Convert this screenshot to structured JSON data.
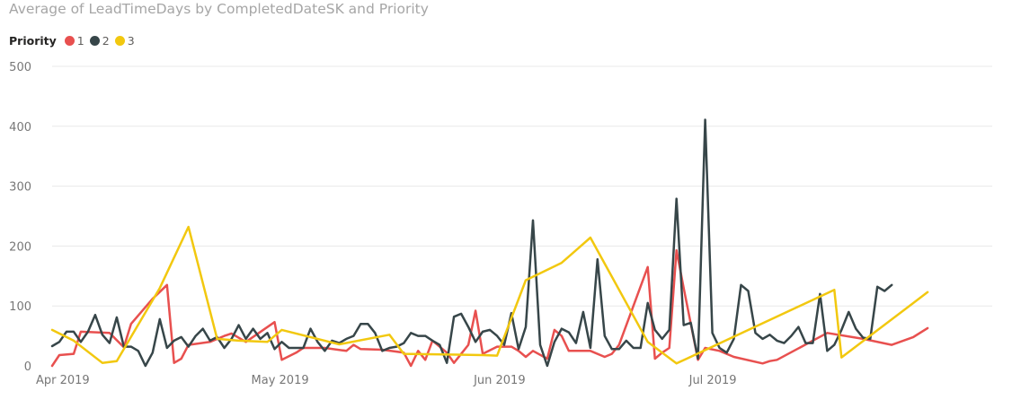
{
  "chart_data": {
    "type": "line",
    "title": "Average of LeadTimeDays by CompletedDateSK and Priority",
    "legend_title": "Priority",
    "legend_position": "top-left",
    "xlabel": "",
    "ylabel": "",
    "ylim": [
      0,
      500
    ],
    "y_ticks": [
      "0",
      "100",
      "200",
      "300",
      "400",
      "500"
    ],
    "x_range": [
      "2019-04-01",
      "2019-08-10"
    ],
    "x_ticks": [
      {
        "date": "2019-04-01",
        "label": "Apr 2019"
      },
      {
        "date": "2019-05-01",
        "label": "May 2019"
      },
      {
        "date": "2019-06-01",
        "label": "Jun 2019"
      },
      {
        "date": "2019-07-01",
        "label": "Jul 2019"
      }
    ],
    "grid": true,
    "series": [
      {
        "name": "1",
        "color": "#e8504f",
        "points": [
          [
            "2019-04-01",
            0
          ],
          [
            "2019-04-02",
            18
          ],
          [
            "2019-04-04",
            20
          ],
          [
            "2019-04-05",
            57
          ],
          [
            "2019-04-09",
            55
          ],
          [
            "2019-04-11",
            31
          ],
          [
            "2019-04-12",
            70
          ],
          [
            "2019-04-15",
            112
          ],
          [
            "2019-04-17",
            135
          ],
          [
            "2019-04-18",
            5
          ],
          [
            "2019-04-19",
            12
          ],
          [
            "2019-04-20",
            35
          ],
          [
            "2019-04-23",
            40
          ],
          [
            "2019-04-25",
            50
          ],
          [
            "2019-04-26",
            54
          ],
          [
            "2019-04-28",
            40
          ],
          [
            "2019-05-02",
            73
          ],
          [
            "2019-05-03",
            10
          ],
          [
            "2019-05-05",
            22
          ],
          [
            "2019-05-06",
            30
          ],
          [
            "2019-05-09",
            30
          ],
          [
            "2019-05-12",
            25
          ],
          [
            "2019-05-13",
            35
          ],
          [
            "2019-05-14",
            28
          ],
          [
            "2019-05-17",
            27
          ],
          [
            "2019-05-20",
            22
          ],
          [
            "2019-05-21",
            0
          ],
          [
            "2019-05-22",
            25
          ],
          [
            "2019-05-23",
            10
          ],
          [
            "2019-05-24",
            42
          ],
          [
            "2019-05-26",
            22
          ],
          [
            "2019-05-27",
            5
          ],
          [
            "2019-05-29",
            35
          ],
          [
            "2019-05-30",
            92
          ],
          [
            "2019-05-31",
            20
          ],
          [
            "2019-06-02",
            32
          ],
          [
            "2019-06-04",
            32
          ],
          [
            "2019-06-05",
            25
          ],
          [
            "2019-06-06",
            15
          ],
          [
            "2019-06-07",
            25
          ],
          [
            "2019-06-09",
            12
          ],
          [
            "2019-06-10",
            60
          ],
          [
            "2019-06-11",
            50
          ],
          [
            "2019-06-12",
            25
          ],
          [
            "2019-06-13",
            25
          ],
          [
            "2019-06-15",
            25
          ],
          [
            "2019-06-17",
            15
          ],
          [
            "2019-06-18",
            20
          ],
          [
            "2019-06-19",
            35
          ],
          [
            "2019-06-23",
            165
          ],
          [
            "2019-06-24",
            12
          ],
          [
            "2019-06-25",
            22
          ],
          [
            "2019-06-26",
            30
          ],
          [
            "2019-06-27",
            193
          ],
          [
            "2019-06-28",
            130
          ],
          [
            "2019-06-30",
            10
          ],
          [
            "2019-07-01",
            30
          ],
          [
            "2019-07-03",
            25
          ],
          [
            "2019-07-05",
            15
          ],
          [
            "2019-07-09",
            4
          ],
          [
            "2019-07-10",
            8
          ],
          [
            "2019-07-11",
            10
          ],
          [
            "2019-07-18",
            55
          ],
          [
            "2019-07-23",
            45
          ],
          [
            "2019-07-27",
            35
          ],
          [
            "2019-07-30",
            48
          ],
          [
            "2019-08-01",
            63
          ]
        ]
      },
      {
        "name": "2",
        "color": "#374649",
        "points": [
          [
            "2019-04-01",
            33
          ],
          [
            "2019-04-02",
            40
          ],
          [
            "2019-04-03",
            57
          ],
          [
            "2019-04-04",
            57
          ],
          [
            "2019-04-05",
            40
          ],
          [
            "2019-04-06",
            57
          ],
          [
            "2019-04-07",
            85
          ],
          [
            "2019-04-08",
            52
          ],
          [
            "2019-04-09",
            38
          ],
          [
            "2019-04-10",
            81
          ],
          [
            "2019-04-11",
            32
          ],
          [
            "2019-04-12",
            32
          ],
          [
            "2019-04-13",
            25
          ],
          [
            "2019-04-14",
            0
          ],
          [
            "2019-04-15",
            22
          ],
          [
            "2019-04-16",
            78
          ],
          [
            "2019-04-17",
            30
          ],
          [
            "2019-04-18",
            42
          ],
          [
            "2019-04-19",
            48
          ],
          [
            "2019-04-20",
            32
          ],
          [
            "2019-04-21",
            50
          ],
          [
            "2019-04-22",
            62
          ],
          [
            "2019-04-23",
            42
          ],
          [
            "2019-04-24",
            48
          ],
          [
            "2019-04-25",
            30
          ],
          [
            "2019-04-26",
            45
          ],
          [
            "2019-04-27",
            68
          ],
          [
            "2019-04-28",
            45
          ],
          [
            "2019-04-29",
            62
          ],
          [
            "2019-04-30",
            45
          ],
          [
            "2019-05-01",
            55
          ],
          [
            "2019-05-02",
            28
          ],
          [
            "2019-05-03",
            40
          ],
          [
            "2019-05-04",
            30
          ],
          [
            "2019-05-05",
            30
          ],
          [
            "2019-05-06",
            30
          ],
          [
            "2019-05-07",
            62
          ],
          [
            "2019-05-08",
            40
          ],
          [
            "2019-05-09",
            25
          ],
          [
            "2019-05-10",
            42
          ],
          [
            "2019-05-11",
            38
          ],
          [
            "2019-05-12",
            45
          ],
          [
            "2019-05-13",
            50
          ],
          [
            "2019-05-14",
            70
          ],
          [
            "2019-05-15",
            70
          ],
          [
            "2019-05-16",
            55
          ],
          [
            "2019-05-17",
            25
          ],
          [
            "2019-05-18",
            30
          ],
          [
            "2019-05-19",
            32
          ],
          [
            "2019-05-20",
            38
          ],
          [
            "2019-05-21",
            55
          ],
          [
            "2019-05-22",
            50
          ],
          [
            "2019-05-23",
            50
          ],
          [
            "2019-05-24",
            42
          ],
          [
            "2019-05-25",
            35
          ],
          [
            "2019-05-26",
            5
          ],
          [
            "2019-05-27",
            82
          ],
          [
            "2019-05-28",
            87
          ],
          [
            "2019-05-29",
            65
          ],
          [
            "2019-05-30",
            40
          ],
          [
            "2019-05-31",
            57
          ],
          [
            "2019-06-01",
            60
          ],
          [
            "2019-06-02",
            50
          ],
          [
            "2019-06-03",
            35
          ],
          [
            "2019-06-04",
            88
          ],
          [
            "2019-06-05",
            28
          ],
          [
            "2019-06-06",
            65
          ],
          [
            "2019-06-07",
            243
          ],
          [
            "2019-06-08",
            35
          ],
          [
            "2019-06-09",
            0
          ],
          [
            "2019-06-10",
            40
          ],
          [
            "2019-06-11",
            62
          ],
          [
            "2019-06-12",
            56
          ],
          [
            "2019-06-13",
            38
          ],
          [
            "2019-06-14",
            90
          ],
          [
            "2019-06-15",
            30
          ],
          [
            "2019-06-16",
            178
          ],
          [
            "2019-06-17",
            50
          ],
          [
            "2019-06-18",
            28
          ],
          [
            "2019-06-19",
            28
          ],
          [
            "2019-06-20",
            42
          ],
          [
            "2019-06-21",
            30
          ],
          [
            "2019-06-22",
            30
          ],
          [
            "2019-06-23",
            105
          ],
          [
            "2019-06-24",
            60
          ],
          [
            "2019-06-25",
            45
          ],
          [
            "2019-06-26",
            60
          ],
          [
            "2019-06-27",
            279
          ],
          [
            "2019-06-28",
            68
          ],
          [
            "2019-06-29",
            72
          ],
          [
            "2019-06-30",
            12
          ],
          [
            "2019-07-01",
            411
          ],
          [
            "2019-07-02",
            55
          ],
          [
            "2019-07-03",
            30
          ],
          [
            "2019-07-04",
            22
          ],
          [
            "2019-07-05",
            45
          ],
          [
            "2019-07-06",
            135
          ],
          [
            "2019-07-07",
            125
          ],
          [
            "2019-07-08",
            55
          ],
          [
            "2019-07-09",
            45
          ],
          [
            "2019-07-10",
            52
          ],
          [
            "2019-07-11",
            42
          ],
          [
            "2019-07-12",
            38
          ],
          [
            "2019-07-13",
            50
          ],
          [
            "2019-07-14",
            65
          ],
          [
            "2019-07-15",
            38
          ],
          [
            "2019-07-16",
            38
          ],
          [
            "2019-07-17",
            120
          ],
          [
            "2019-07-18",
            25
          ],
          [
            "2019-07-19",
            35
          ],
          [
            "2019-07-20",
            60
          ],
          [
            "2019-07-21",
            90
          ],
          [
            "2019-07-22",
            62
          ],
          [
            "2019-07-23",
            47
          ],
          [
            "2019-07-24",
            45
          ],
          [
            "2019-07-25",
            132
          ],
          [
            "2019-07-26",
            125
          ],
          [
            "2019-07-27",
            135
          ]
        ]
      },
      {
        "name": "3",
        "color": "#f2c80f",
        "points": [
          [
            "2019-04-01",
            60
          ],
          [
            "2019-04-04",
            42
          ],
          [
            "2019-04-08",
            5
          ],
          [
            "2019-04-10",
            8
          ],
          [
            "2019-04-16",
            130
          ],
          [
            "2019-04-20",
            232
          ],
          [
            "2019-04-24",
            45
          ],
          [
            "2019-04-27",
            42
          ],
          [
            "2019-05-01",
            40
          ],
          [
            "2019-05-03",
            60
          ],
          [
            "2019-05-11",
            36
          ],
          [
            "2019-05-18",
            52
          ],
          [
            "2019-05-20",
            20
          ],
          [
            "2019-05-31",
            18
          ],
          [
            "2019-06-02",
            17
          ],
          [
            "2019-06-06",
            143
          ],
          [
            "2019-06-11",
            172
          ],
          [
            "2019-06-15",
            214
          ],
          [
            "2019-06-23",
            40
          ],
          [
            "2019-06-27",
            4
          ],
          [
            "2019-07-19",
            127
          ],
          [
            "2019-07-20",
            14
          ],
          [
            "2019-08-01",
            123
          ]
        ]
      }
    ]
  }
}
